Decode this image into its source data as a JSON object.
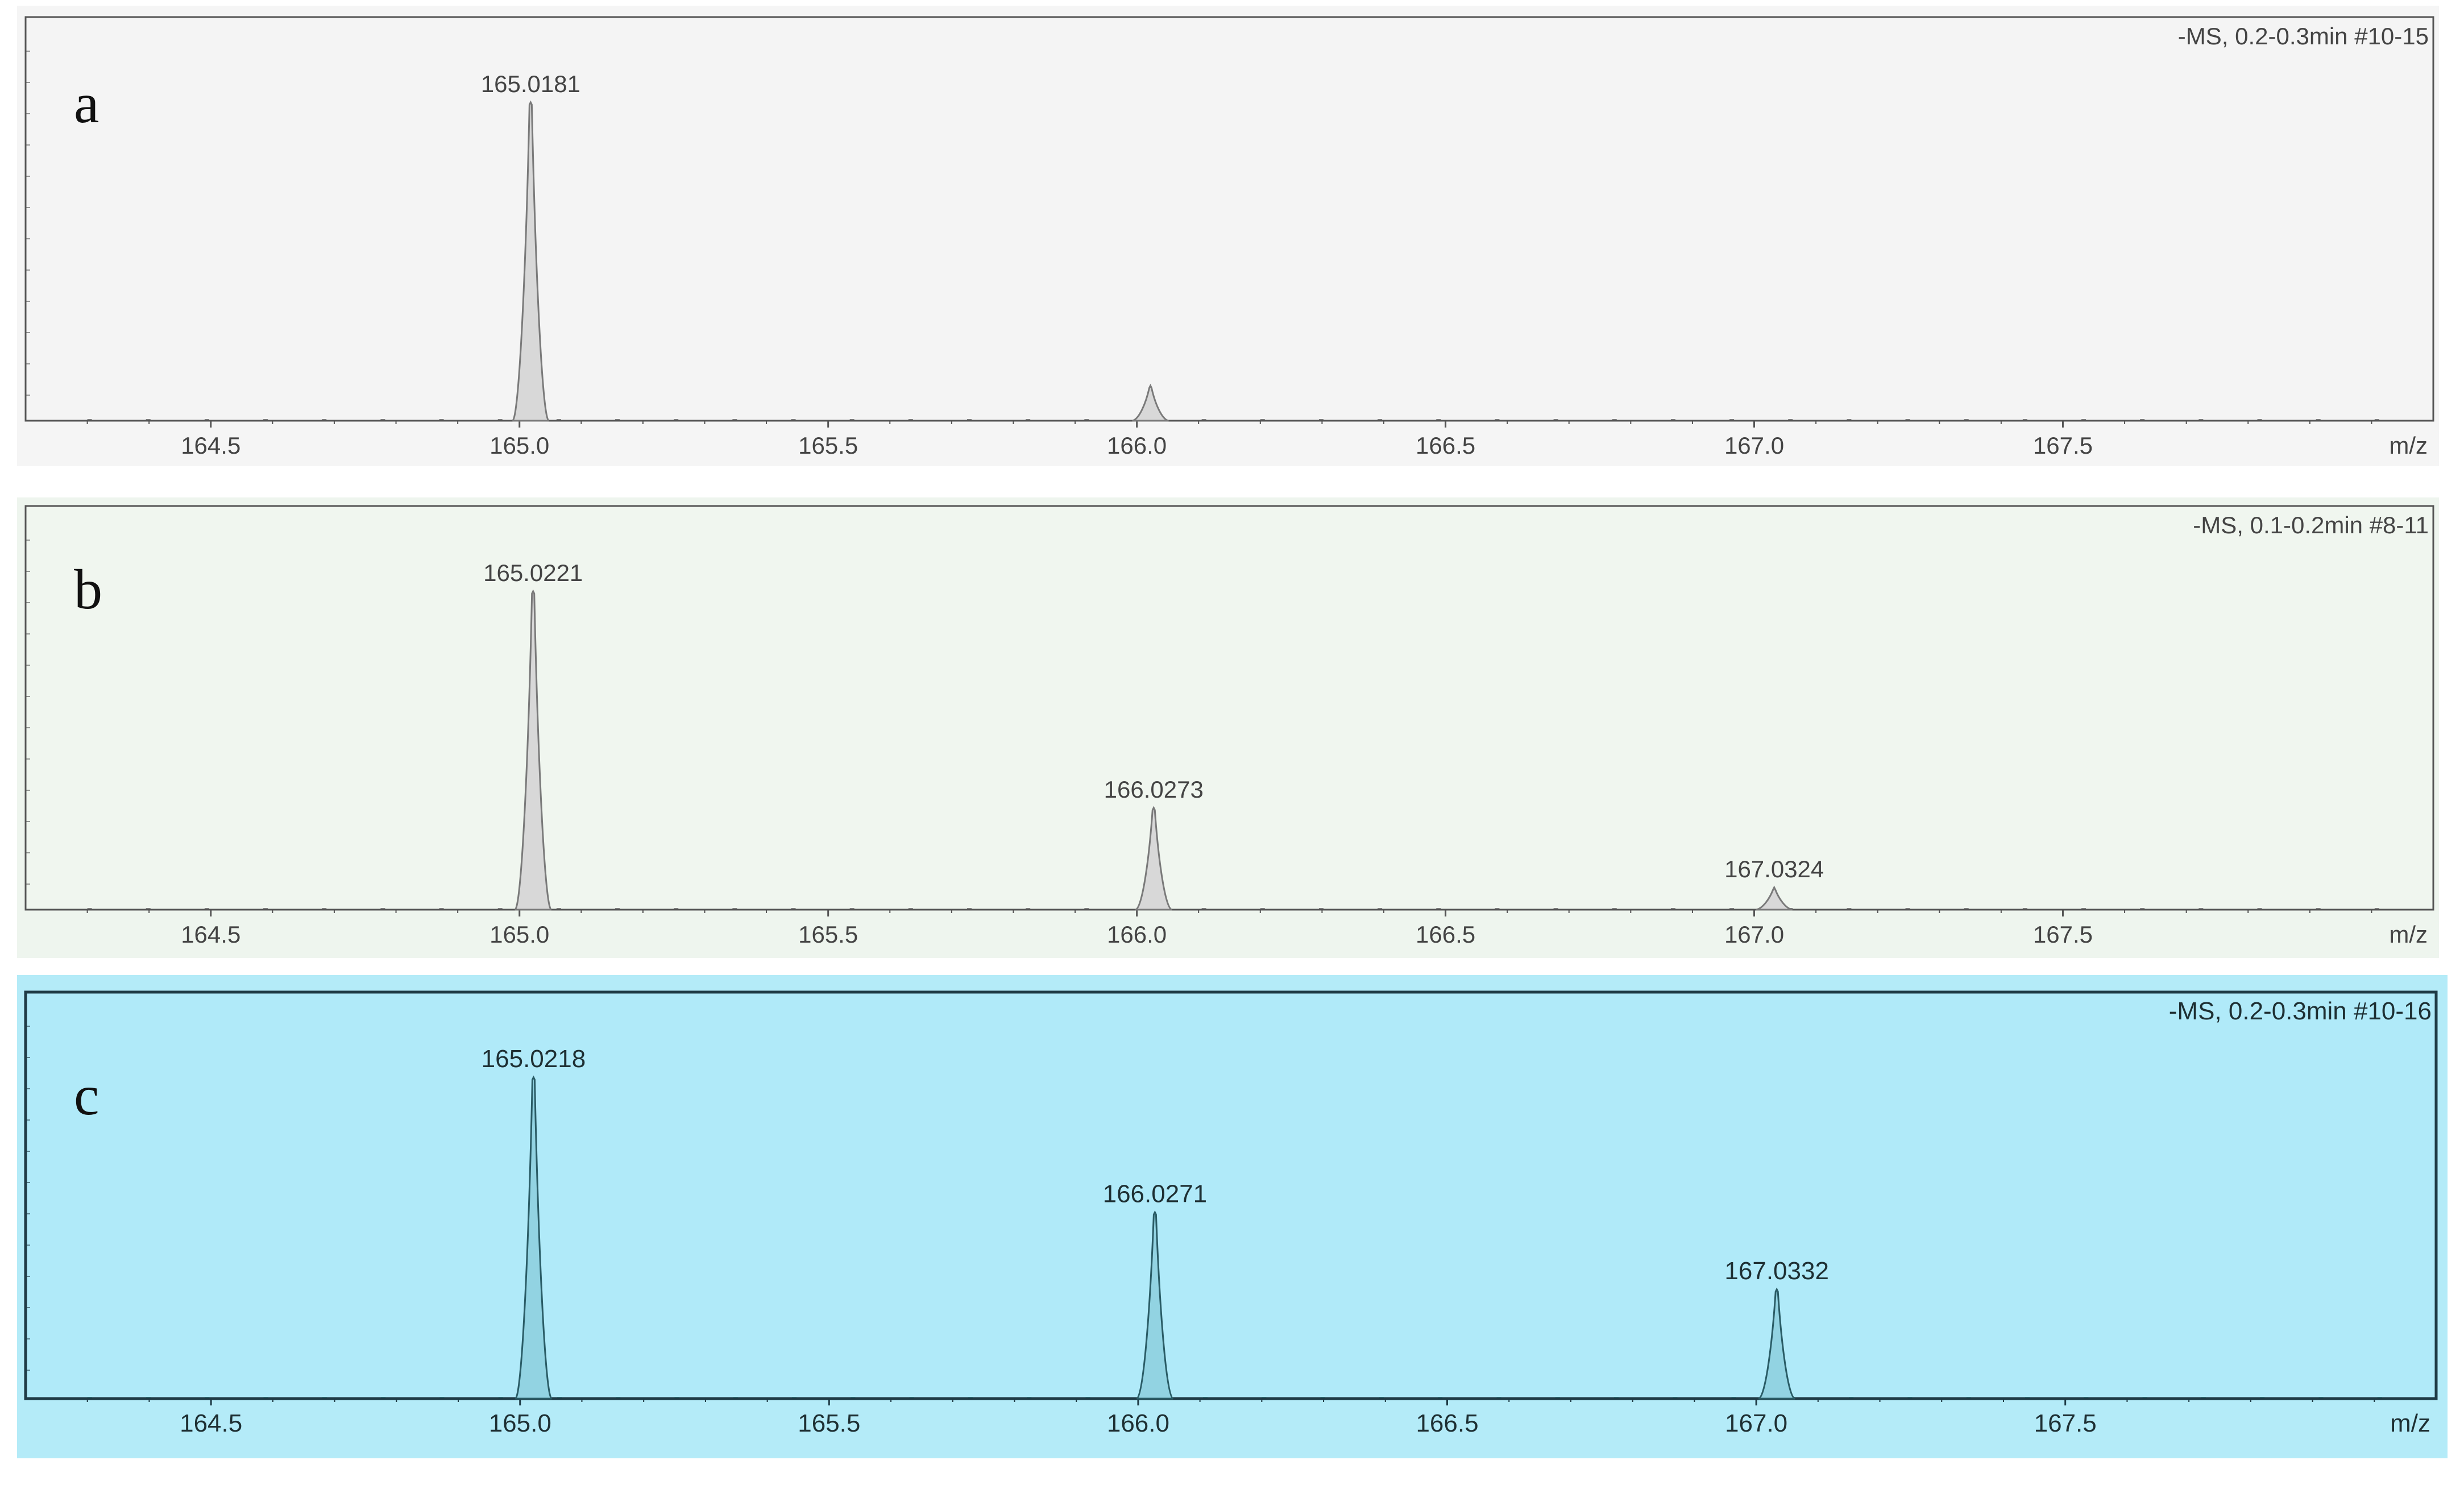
{
  "figure": {
    "panels": [
      {
        "letter": "a",
        "scan_info": "-MS, 0.2-0.3min #10-15",
        "theme": "plain"
      },
      {
        "letter": "b",
        "scan_info": "-MS, 0.1-0.2min #8-11",
        "theme": "plain-green"
      },
      {
        "letter": "c",
        "scan_info": "-MS, 0.2-0.3min #10-16",
        "theme": "highlight"
      }
    ]
  },
  "colors": {
    "page_background": "#ffffff",
    "panel_a_frame": "#f5f5f5",
    "panel_a_plot": "#f4f4f4",
    "panel_b_frame": "#eef5ee",
    "panel_b_plot": "#f0f6ef",
    "panel_c_frame": "#b4ebf8",
    "panel_c_plot": "#b0eaf9",
    "axis": "#555555",
    "axis_c": "#1f3b46",
    "peak_fill": "#d8d8d8",
    "peak_fill_c": "#92d3e2",
    "peak_line": "#7a7a7a",
    "peak_line_c": "#2a5c66",
    "text": "#444444",
    "text_c": "#1e2f33"
  },
  "chart_data": [
    {
      "type": "line",
      "panel_label": "a",
      "annotation": "-MS, 0.2-0.3min #10-15",
      "xlabel": "m/z",
      "ylabel": "",
      "xlim": [
        164.2,
        168.1
      ],
      "ylim": [
        0,
        100
      ],
      "xticks": [
        "164.5",
        "165.0",
        "165.5",
        "166.0",
        "166.5",
        "167.0",
        "167.5"
      ],
      "grid": false,
      "peaks": [
        {
          "mz": 165.0181,
          "relative_intensity": 100,
          "label": "165.0181"
        },
        {
          "mz": 166.022,
          "relative_intensity": 11,
          "label": ""
        }
      ]
    },
    {
      "type": "line",
      "panel_label": "b",
      "annotation": "-MS, 0.1-0.2min #8-11",
      "xlabel": "m/z",
      "ylabel": "",
      "xlim": [
        164.2,
        168.1
      ],
      "ylim": [
        0,
        100
      ],
      "xticks": [
        "164.5",
        "165.0",
        "165.5",
        "166.0",
        "166.5",
        "167.0",
        "167.5"
      ],
      "grid": false,
      "peaks": [
        {
          "mz": 165.0221,
          "relative_intensity": 100,
          "label": "165.0221"
        },
        {
          "mz": 166.0273,
          "relative_intensity": 32,
          "label": "166.0273"
        },
        {
          "mz": 167.0324,
          "relative_intensity": 7,
          "label": "167.0324"
        }
      ]
    },
    {
      "type": "line",
      "panel_label": "c",
      "annotation": "-MS, 0.2-0.3min #10-16",
      "xlabel": "m/z",
      "ylabel": "",
      "xlim": [
        164.2,
        168.1
      ],
      "ylim": [
        0,
        100
      ],
      "xticks": [
        "164.5",
        "165.0",
        "165.5",
        "166.0",
        "166.5",
        "167.0",
        "167.5"
      ],
      "grid": false,
      "peaks": [
        {
          "mz": 165.0218,
          "relative_intensity": 100,
          "label": "165.0218"
        },
        {
          "mz": 166.0271,
          "relative_intensity": 58,
          "label": "166.0271"
        },
        {
          "mz": 167.0332,
          "relative_intensity": 34,
          "label": "167.0332"
        }
      ]
    }
  ]
}
